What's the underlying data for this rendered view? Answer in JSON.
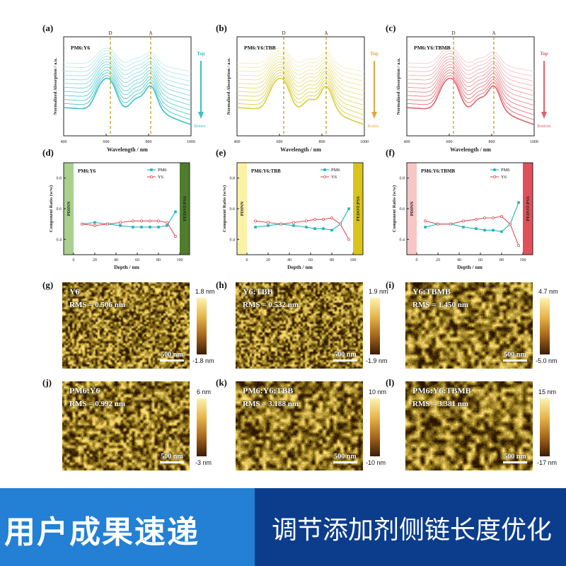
{
  "figure": {
    "absorption_panels": [
      {
        "label": "(a)",
        "sample": "PM6:Y6",
        "color": "#3cbfc4",
        "legend_color": "#3cbfc4",
        "peak_d": 620,
        "peak_a": 810,
        "show_top_bottom": true
      },
      {
        "label": "(b)",
        "sample": "PM6:Y6:TBB",
        "color": "#d9cc3a",
        "legend_color": "#e0a840",
        "peak_d": 620,
        "peak_a": 820,
        "show_top_bottom": true
      },
      {
        "label": "(c)",
        "sample": "PM6:Y6:TBMB",
        "color": "#e0606a",
        "legend_color": "#e0606a",
        "peak_d": 620,
        "peak_a": 810,
        "show_top_bottom": true
      }
    ],
    "absorption_common": {
      "ylabel": "Normalized Absorption / a.u.",
      "xlabel": "Wavelength / nm",
      "xticks": [
        "400",
        "600",
        "800",
        "1000"
      ],
      "marker_d": "D",
      "marker_a": "A",
      "top_label": "Top",
      "bottom_label": "Bottom"
    },
    "ratio_panels": [
      {
        "label": "(d)",
        "sample": "PM6:Y6",
        "left_color": "#a9d08e",
        "right_color": "#4f7d2c"
      },
      {
        "label": "(e)",
        "sample": "PM6:Y6:TBB",
        "left_color": "#fbf2a6",
        "right_color": "#d9c41a"
      },
      {
        "label": "(f)",
        "sample": "PM6:Y6:TBMB",
        "left_color": "#f7c6c6",
        "right_color": "#e0505a"
      }
    ],
    "ratio_common": {
      "ylabel": "Component Ratio (w/w)",
      "xlabel": "Depth / nm",
      "left_layer": "PDINN",
      "right_layer": "PEDOT:PSS",
      "legend_pm6": "PM6",
      "legend_y6": "Y6",
      "yticks": [
        "0.4",
        "0.6",
        "0.8"
      ],
      "xticks": [
        "0",
        "20",
        "40",
        "60",
        "80",
        "100"
      ]
    },
    "chart_data": [
      {
        "type": "line",
        "title": "PM6:Y6",
        "xlabel": "Depth / nm",
        "ylabel": "Component Ratio (w/w)",
        "ylim": [
          0.3,
          0.9
        ],
        "xlim": [
          0,
          100
        ],
        "x": [
          8,
          20,
          32,
          44,
          56,
          64,
          72,
          80,
          88,
          96
        ],
        "series": [
          {
            "name": "PM6",
            "values": [
              0.5,
              0.51,
              0.5,
              0.49,
              0.48,
              0.48,
              0.48,
              0.48,
              0.49,
              0.58
            ],
            "color": "#1fb3b7"
          },
          {
            "name": "Y6",
            "values": [
              0.5,
              0.49,
              0.5,
              0.51,
              0.52,
              0.52,
              0.52,
              0.52,
              0.51,
              0.42
            ],
            "color": "#e0505a"
          }
        ]
      },
      {
        "type": "line",
        "title": "PM6:Y6:TBB",
        "xlabel": "Depth / nm",
        "ylabel": "Component Ratio (w/w)",
        "ylim": [
          0.3,
          0.9
        ],
        "xlim": [
          0,
          100
        ],
        "x": [
          8,
          20,
          32,
          44,
          56,
          64,
          72,
          80,
          88,
          96
        ],
        "series": [
          {
            "name": "PM6",
            "values": [
              0.48,
              0.49,
              0.5,
              0.49,
              0.48,
              0.47,
              0.47,
              0.46,
              0.5,
              0.6
            ],
            "color": "#1fb3b7"
          },
          {
            "name": "Y6",
            "values": [
              0.52,
              0.51,
              0.5,
              0.51,
              0.52,
              0.53,
              0.53,
              0.54,
              0.5,
              0.4
            ],
            "color": "#e0505a"
          }
        ]
      },
      {
        "type": "line",
        "title": "PM6:Y6:TBMB",
        "xlabel": "Depth / nm",
        "ylabel": "Component Ratio (w/w)",
        "ylim": [
          0.3,
          0.9
        ],
        "xlim": [
          0,
          100
        ],
        "x": [
          8,
          20,
          32,
          44,
          56,
          64,
          72,
          80,
          88,
          96
        ],
        "series": [
          {
            "name": "PM6",
            "values": [
              0.48,
              0.5,
              0.5,
              0.48,
              0.47,
              0.46,
              0.46,
              0.45,
              0.5,
              0.64
            ],
            "color": "#1fb3b7"
          },
          {
            "name": "Y6",
            "values": [
              0.52,
              0.5,
              0.5,
              0.52,
              0.53,
              0.54,
              0.54,
              0.55,
              0.5,
              0.36
            ],
            "color": "#e0505a"
          }
        ]
      }
    ],
    "afm_panels": [
      {
        "label": "(g)",
        "title": "Y6",
        "rms": "RMS = 0.506 nm",
        "scale": "500 nm",
        "cbar_top": "1.8 nm",
        "cbar_bottom": "-1.8 nm",
        "seed": 11,
        "grain": 3
      },
      {
        "label": "(h)",
        "title": "Y6:TBB",
        "rms": "RMS = 0.532 nm",
        "scale": "500 nm",
        "cbar_top": "1.9 nm",
        "cbar_bottom": "-1.9 nm",
        "seed": 23,
        "grain": 3
      },
      {
        "label": "(i)",
        "title": "Y6:TBMB",
        "rms": "RMS = 1.450 nm",
        "scale": "500 nm",
        "cbar_top": "4.7 nm",
        "cbar_bottom": "-5.0 nm",
        "seed": 37,
        "grain": 5
      },
      {
        "label": "(j)",
        "title": "PM6:Y6",
        "rms": "RMS = 0.992 nm",
        "scale": "500 nm",
        "cbar_top": "6 nm",
        "cbar_bottom": "-3 nm",
        "seed": 41,
        "grain": 4
      },
      {
        "label": "(k)",
        "title": "PM6:Y6:TBB",
        "rms": "RMS = 3.188 nm",
        "scale": "500 nm",
        "cbar_top": "10 nm",
        "cbar_bottom": "-10 nm",
        "seed": 53,
        "grain": 5
      },
      {
        "label": "(l)",
        "title": "PM6:Y6:TBMB",
        "rms": "RMS = 3.381 nm",
        "scale": "500 nm",
        "cbar_top": "15 nm",
        "cbar_bottom": "-17 nm",
        "seed": 67,
        "grain": 6
      }
    ]
  },
  "banner": {
    "left_text": "用户成果速递",
    "right_text": "调节添加剂侧链长度优化",
    "left_color": "#2380d4",
    "right_color": "#0c3d8c"
  }
}
